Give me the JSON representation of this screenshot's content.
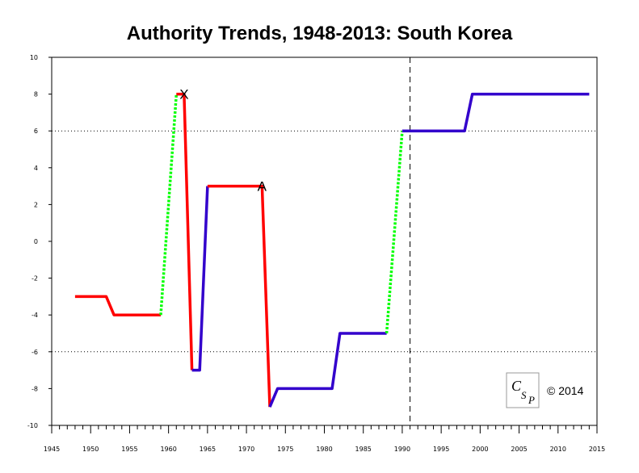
{
  "chart_data": {
    "type": "line",
    "title": "Authority Trends, 1948-2013: South Korea",
    "xlim": [
      1945,
      2015
    ],
    "ylim": [
      -10,
      10
    ],
    "x_ticks": [
      1945,
      1950,
      1955,
      1960,
      1965,
      1970,
      1975,
      1980,
      1985,
      1990,
      1995,
      2000,
      2005,
      2010,
      2015
    ],
    "y_ticks": [
      -10,
      -8,
      -6,
      -4,
      -2,
      0,
      2,
      4,
      6,
      8,
      10
    ],
    "reference_lines": [
      {
        "axis": "y",
        "value": 6,
        "style": "dotted"
      },
      {
        "axis": "y",
        "value": -6,
        "style": "dotted"
      },
      {
        "axis": "x",
        "value": 1991,
        "style": "dashed"
      }
    ],
    "segments": [
      {
        "color": "#ff0000",
        "style": "solid",
        "points": [
          [
            1948,
            -3
          ],
          [
            1952,
            -3
          ],
          [
            1953,
            -4
          ],
          [
            1959,
            -4
          ]
        ]
      },
      {
        "color": "#00ff00",
        "style": "dotted",
        "points": [
          [
            1959,
            -4
          ],
          [
            1961,
            8
          ]
        ]
      },
      {
        "color": "#ff0000",
        "style": "solid",
        "points": [
          [
            1961,
            8
          ],
          [
            1962,
            8
          ],
          [
            1963,
            -7
          ]
        ]
      },
      {
        "color": "#3300cc",
        "style": "solid",
        "points": [
          [
            1963,
            -7
          ],
          [
            1964,
            -7
          ],
          [
            1965,
            3
          ]
        ]
      },
      {
        "color": "#ff0000",
        "style": "solid",
        "points": [
          [
            1965,
            3
          ],
          [
            1972,
            3
          ],
          [
            1973,
            -9
          ]
        ]
      },
      {
        "color": "#3300cc",
        "style": "solid",
        "points": [
          [
            1973,
            -9
          ],
          [
            1974,
            -8
          ],
          [
            1981,
            -8
          ],
          [
            1982,
            -5
          ],
          [
            1988,
            -5
          ]
        ]
      },
      {
        "color": "#00ff00",
        "style": "dotted",
        "points": [
          [
            1988,
            -5
          ],
          [
            1990,
            6
          ]
        ]
      },
      {
        "color": "#3300cc",
        "style": "solid",
        "points": [
          [
            1990,
            6
          ],
          [
            1998,
            6
          ],
          [
            1999,
            8
          ],
          [
            2014,
            8
          ]
        ]
      }
    ],
    "annotations": [
      {
        "text": "X",
        "x": 1962,
        "y": 8
      },
      {
        "text": "A",
        "x": 1972,
        "y": 3
      }
    ]
  },
  "logo": {
    "text": "CSP"
  },
  "copyright": "© 2014"
}
